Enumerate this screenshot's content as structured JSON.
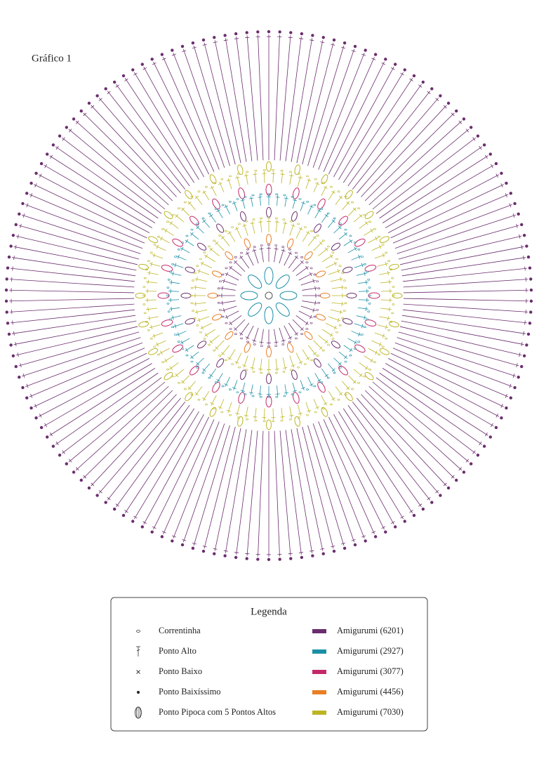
{
  "header": {
    "title": "Gráfico 1"
  },
  "legend": {
    "title": "Legenda",
    "symbols": [
      {
        "label": "Correntinha"
      },
      {
        "label": "Ponto Alto"
      },
      {
        "label": "Ponto Baixo"
      },
      {
        "label": "Ponto Baixíssimo"
      },
      {
        "label": "Ponto Pipoca com 5 Pontos Altos"
      }
    ],
    "colors": [
      {
        "label": "Amigurumi (6201)",
        "color": "#6b2d6e"
      },
      {
        "label": "Amigurumi (2927)",
        "color": "#1a8fa6"
      },
      {
        "label": "Amigurumi (3077)",
        "color": "#c4286a"
      },
      {
        "label": "Amigurumi (4456)",
        "color": "#e97e24"
      },
      {
        "label": "Amigurumi (7030)",
        "color": "#bcb523"
      }
    ]
  }
}
